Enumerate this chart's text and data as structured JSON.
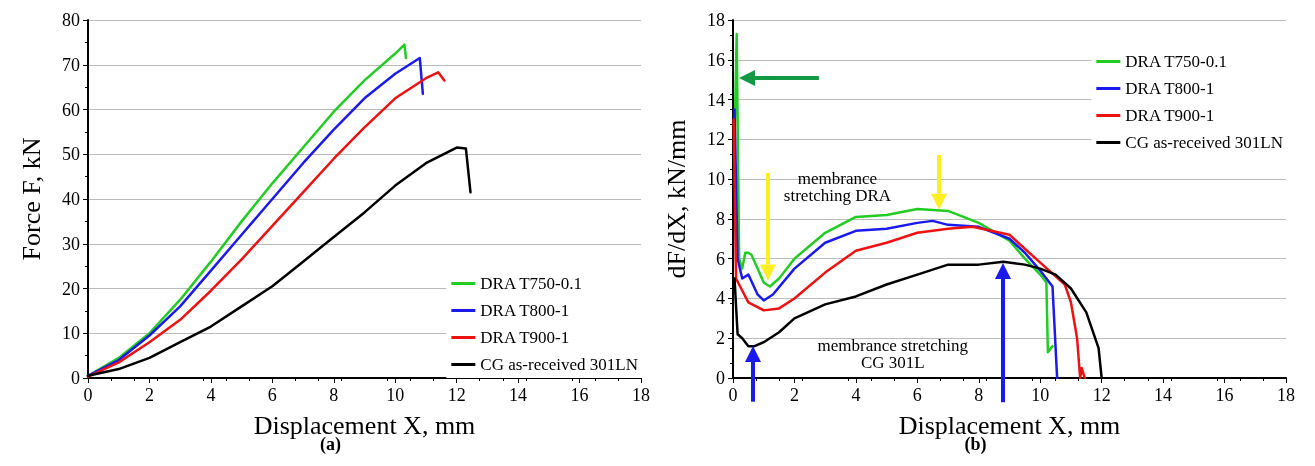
{
  "chart_data": [
    {
      "type": "line",
      "title": "(a)",
      "xlabel": "Displacement X, mm",
      "ylabel": "Force F, kN",
      "xlim": [
        0,
        18
      ],
      "xticks": [
        0,
        2,
        4,
        6,
        8,
        10,
        12,
        14,
        16,
        18
      ],
      "ylim": [
        0,
        80
      ],
      "yticks": [
        0,
        10,
        20,
        30,
        40,
        50,
        60,
        70,
        80
      ],
      "grid": "y",
      "legend": "bottom right",
      "line_style": "solid",
      "series": [
        {
          "name": "DRA T750-0.1",
          "color": "#22cc22",
          "x": [
            0,
            0.5,
            1,
            2,
            3,
            4,
            5,
            6,
            7,
            8,
            9,
            10,
            10.3,
            10.35
          ],
          "values": [
            0.5,
            2.5,
            4.5,
            10,
            17.5,
            26,
            35,
            43.5,
            51.5,
            59.5,
            66.5,
            72.5,
            74.5,
            71.5
          ]
        },
        {
          "name": "DRA T800-1",
          "color": "#1a1aee",
          "x": [
            0,
            1,
            2,
            3,
            4,
            5,
            6,
            7,
            8,
            9,
            10,
            10.8,
            10.9
          ],
          "values": [
            0.5,
            4,
            9.5,
            16,
            24,
            32,
            40,
            48,
            55.5,
            62.5,
            68,
            71.5,
            63.5
          ]
        },
        {
          "name": "DRA T900-1",
          "color": "#ee1111",
          "x": [
            0,
            1,
            2,
            3,
            4,
            5,
            6,
            7,
            8,
            9,
            10,
            11,
            11.4,
            11.6
          ],
          "values": [
            0.3,
            3.5,
            8,
            13,
            19.5,
            26.5,
            34,
            41.5,
            49,
            56,
            62.5,
            67,
            68.3,
            66.5
          ]
        },
        {
          "name": "CG as-received 301LN",
          "color": "#000000",
          "x": [
            0,
            1,
            2,
            3,
            4,
            5,
            6,
            7,
            8,
            9,
            10,
            11,
            12,
            12.3,
            12.45
          ],
          "values": [
            0.5,
            2,
            4.5,
            8,
            11.5,
            16,
            20.5,
            26,
            31.5,
            37,
            43,
            48,
            51.5,
            51.3,
            41.5
          ]
        }
      ]
    },
    {
      "type": "line",
      "title": "(b)",
      "xlabel": "Displacement X, mm",
      "ylabel": "dF/dX, kN/mm",
      "xlim": [
        0,
        18
      ],
      "xticks": [
        0,
        2,
        4,
        6,
        8,
        10,
        12,
        14,
        16,
        18
      ],
      "ylim": [
        0,
        18
      ],
      "yticks": [
        0,
        2,
        4,
        6,
        8,
        10,
        12,
        14,
        16,
        18
      ],
      "grid": "y",
      "legend": "top right",
      "line_style": "solid",
      "annotations": [
        "membrance\nstretching DRA",
        "membrance stretching\nCG 301L"
      ],
      "series": [
        {
          "name": "DRA T750-0.1",
          "color": "#22cc22",
          "x": [
            0.05,
            0.12,
            0.2,
            0.3,
            0.4,
            0.5,
            0.6,
            0.8,
            1,
            1.2,
            1.5,
            2,
            3,
            4,
            5,
            6,
            7,
            8,
            9,
            9.5,
            10,
            10.2,
            10.25,
            10.4
          ],
          "values": [
            12,
            17.3,
            6,
            5.5,
            6.3,
            6.3,
            6.2,
            5.5,
            4.8,
            4.6,
            5,
            6,
            7.3,
            8.1,
            8.2,
            8.5,
            8.4,
            7.8,
            6.9,
            6,
            5.2,
            4.8,
            1.3,
            1.6
          ]
        },
        {
          "name": "DRA T800-1",
          "color": "#1a1aee",
          "x": [
            0.05,
            0.15,
            0.3,
            0.5,
            0.8,
            1,
            1.3,
            2,
            3,
            4,
            5,
            6,
            6.5,
            7,
            8,
            9,
            9.5,
            10,
            10.4,
            10.55
          ],
          "values": [
            13.5,
            6,
            5,
            5.2,
            4.2,
            3.9,
            4.2,
            5.5,
            6.8,
            7.4,
            7.5,
            7.8,
            7.9,
            7.7,
            7.6,
            7,
            6.3,
            5.4,
            4.6,
            0
          ]
        },
        {
          "name": "DRA T900-1",
          "color": "#ee1111",
          "x": [
            0.02,
            0.1,
            0.3,
            0.5,
            1,
            1.5,
            2,
            3,
            4,
            5,
            6,
            7,
            7.8,
            9,
            10,
            10.8,
            11,
            11.2,
            11.3,
            11.35,
            11.45
          ],
          "values": [
            13,
            5,
            4.4,
            3.8,
            3.4,
            3.5,
            4,
            5.3,
            6.4,
            6.8,
            7.3,
            7.5,
            7.6,
            7.2,
            5.8,
            4.7,
            3.8,
            2,
            0,
            0.5,
            0
          ]
        },
        {
          "name": "CG as-received 301LN",
          "color": "#000000",
          "x": [
            0.05,
            0.15,
            0.3,
            0.5,
            0.7,
            1,
            1.5,
            2,
            3,
            4,
            5,
            6,
            7,
            8,
            8.8,
            9.5,
            10,
            10.5,
            11,
            11.5,
            11.9,
            12
          ],
          "values": [
            5,
            2.2,
            2,
            1.6,
            1.6,
            1.8,
            2.3,
            3,
            3.7,
            4.1,
            4.7,
            5.2,
            5.7,
            5.7,
            5.85,
            5.7,
            5.5,
            5.2,
            4.5,
            3.3,
            1.5,
            0
          ]
        }
      ]
    }
  ]
}
